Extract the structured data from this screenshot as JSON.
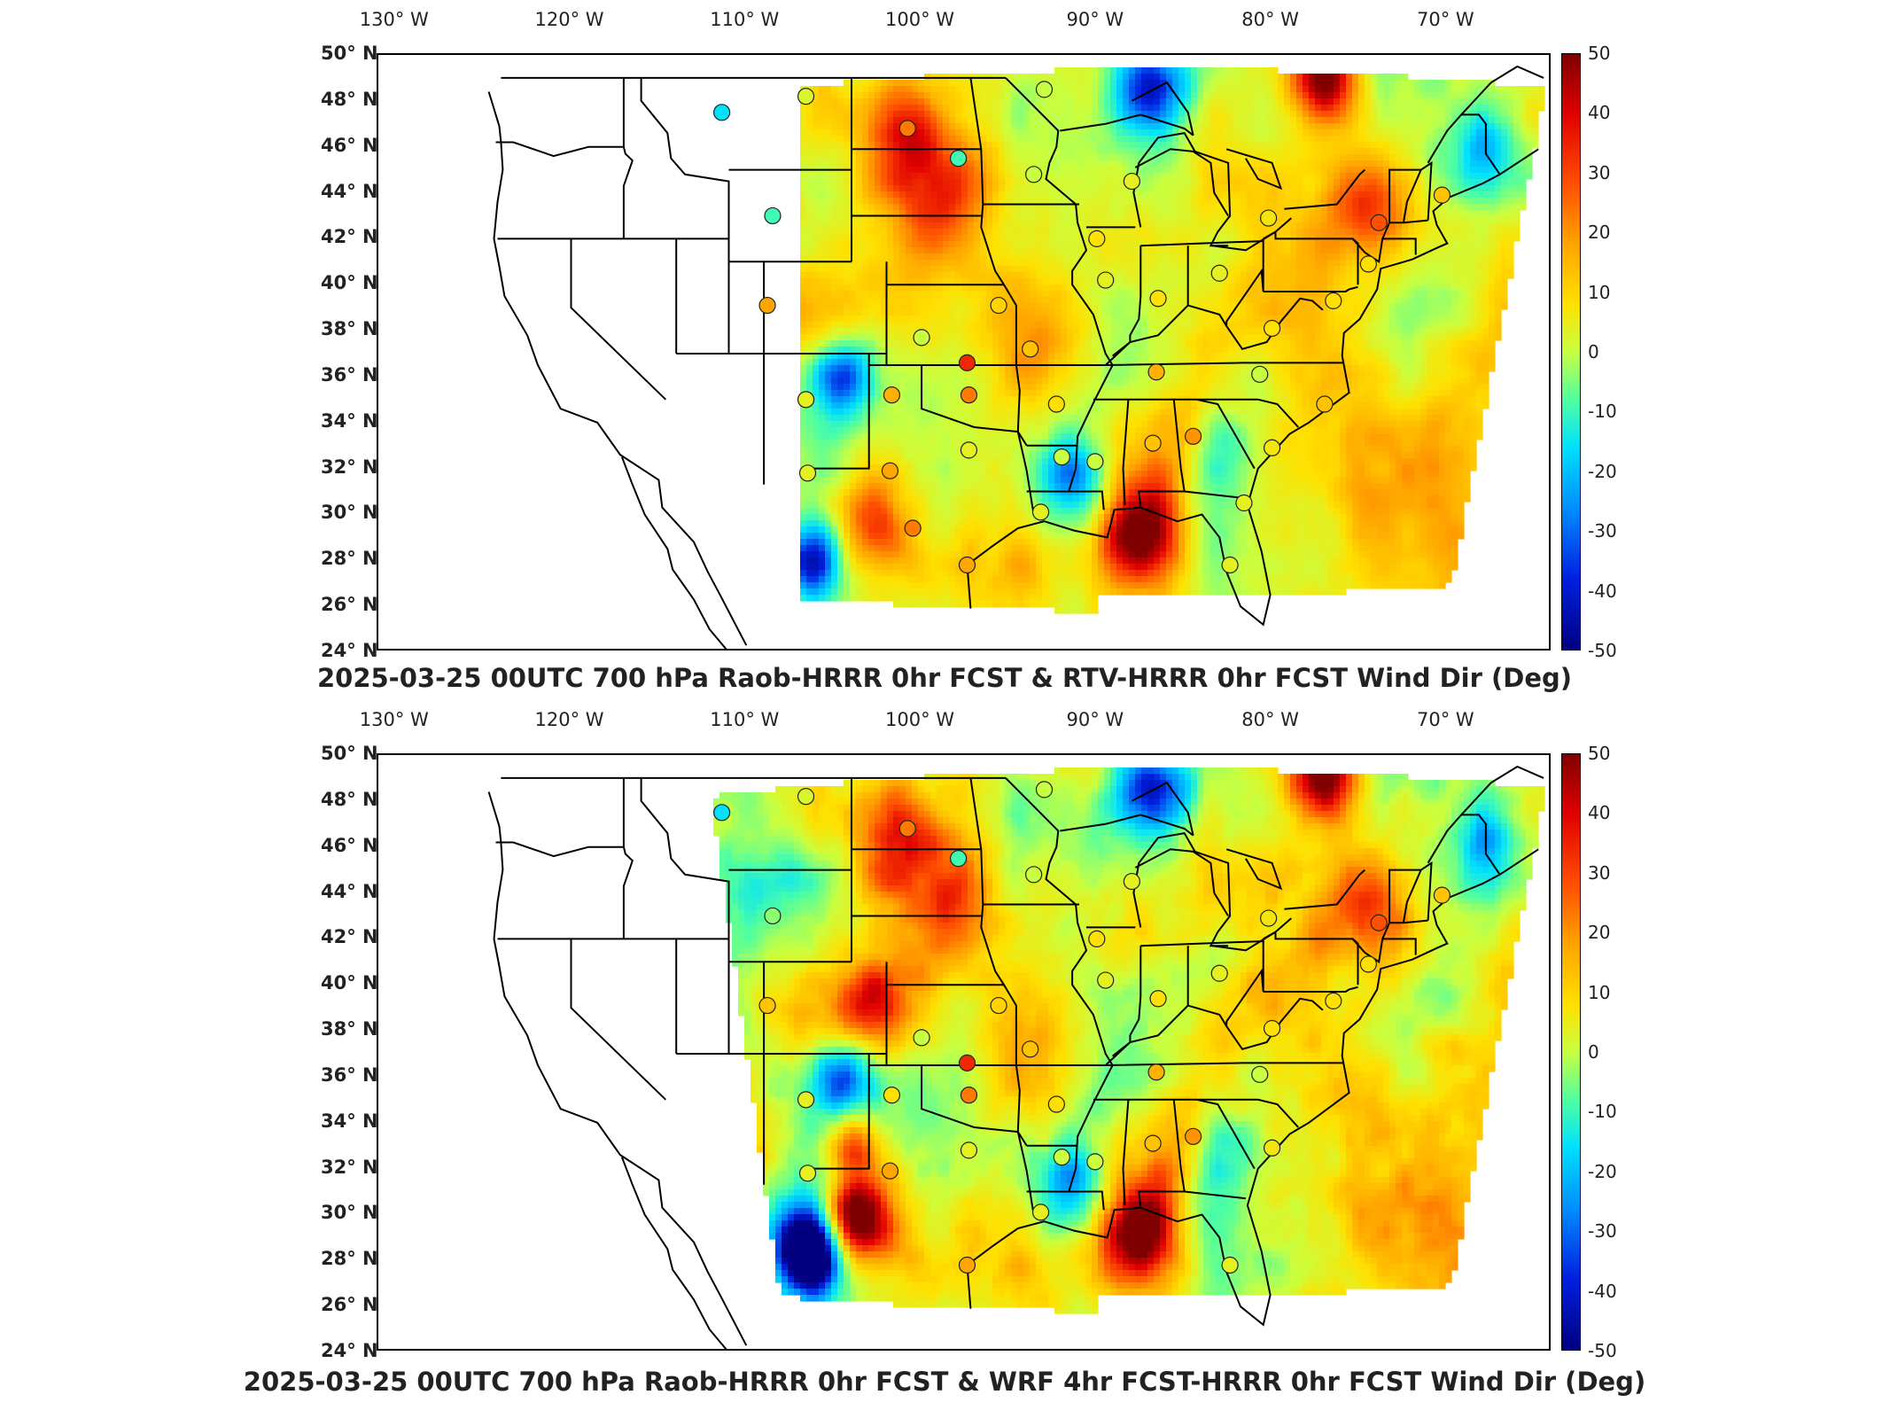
{
  "colormap_colors": [
    "#800000",
    "#e00000",
    "#ff5000",
    "#ffa500",
    "#ffe000",
    "#c8ff40",
    "#50ffa0",
    "#00e0ff",
    "#0090ff",
    "#0020e0",
    "#000080"
  ],
  "lon_labels": [
    "130° W",
    "120° W",
    "110° W",
    "100° W",
    "90° W",
    "80° W",
    "70° W"
  ],
  "lat_labels": [
    "50° N",
    "48° N",
    "46° N",
    "44° N",
    "42° N",
    "40° N",
    "38° N",
    "36° N",
    "34° N",
    "32° N",
    "30° N",
    "28° N",
    "26° N",
    "24° N"
  ],
  "colorbar_ticks": [
    "50",
    "40",
    "30",
    "20",
    "10",
    "0",
    "-10",
    "-20",
    "-30",
    "-40",
    "-50"
  ],
  "panels": [
    {
      "title": "2025-03-25 00UTC 700 hPa Raob-HRRR 0hr FCST & RTV-HRRR 0hr FCST Wind Dir (Deg)"
    },
    {
      "title": "2025-03-25 00UTC 700 hPa Raob-HRRR 0hr FCST & WRF 4hr FCST-HRRR 0hr FCST Wind Dir (Deg)"
    }
  ],
  "chart_data": [
    {
      "type": "heatmap",
      "title": "2025-03-25 00UTC 700 hPa Raob-HRRR 0hr FCST & RTV-HRRR 0hr FCST Wind Dir (Deg)",
      "x_ticks": [
        "130° W",
        "120° W",
        "110° W",
        "100° W",
        "90° W",
        "80° W",
        "70° W"
      ],
      "y_ticks": [
        "50° N",
        "48° N",
        "46° N",
        "44° N",
        "42° N",
        "40° N",
        "38° N",
        "36° N",
        "34° N",
        "32° N",
        "30° N",
        "28° N",
        "26° N",
        "24° N"
      ],
      "xlim": [
        -131,
        -64
      ],
      "ylim": [
        24,
        50
      ],
      "colorbar_range": [
        -50,
        50
      ],
      "colorbar_ticks": [
        50,
        40,
        30,
        20,
        10,
        0,
        -10,
        -20,
        -30,
        -40,
        -50
      ],
      "stations": [
        {
          "lon": -111.4,
          "lat": 47.5,
          "value": -20
        },
        {
          "lon": -106.6,
          "lat": 48.2,
          "value": 3
        },
        {
          "lon": -100.8,
          "lat": 46.8,
          "value": 25
        },
        {
          "lon": -97.9,
          "lat": 45.5,
          "value": -12
        },
        {
          "lon": -93.6,
          "lat": 44.8,
          "value": 0
        },
        {
          "lon": -93.0,
          "lat": 48.5,
          "value": 0
        },
        {
          "lon": -88.0,
          "lat": 44.5,
          "value": 5
        },
        {
          "lon": -108.5,
          "lat": 43.0,
          "value": -12
        },
        {
          "lon": -108.8,
          "lat": 39.1,
          "value": 20
        },
        {
          "lon": -100.0,
          "lat": 37.7,
          "value": 0
        },
        {
          "lon": -95.6,
          "lat": 39.1,
          "value": 12
        },
        {
          "lon": -90.0,
          "lat": 42.0,
          "value": 10
        },
        {
          "lon": -89.5,
          "lat": 40.2,
          "value": 5
        },
        {
          "lon": -86.5,
          "lat": 39.4,
          "value": 10
        },
        {
          "lon": -83.0,
          "lat": 40.5,
          "value": 5
        },
        {
          "lon": -80.2,
          "lat": 42.9,
          "value": 8
        },
        {
          "lon": -73.9,
          "lat": 42.7,
          "value": 30
        },
        {
          "lon": -70.3,
          "lat": 43.9,
          "value": 15
        },
        {
          "lon": -80.0,
          "lat": 38.1,
          "value": 10
        },
        {
          "lon": -97.4,
          "lat": 36.6,
          "value": 35
        },
        {
          "lon": -97.3,
          "lat": 35.2,
          "value": 25
        },
        {
          "lon": -101.7,
          "lat": 35.2,
          "value": 18
        },
        {
          "lon": -106.6,
          "lat": 35.0,
          "value": 5
        },
        {
          "lon": -93.8,
          "lat": 37.2,
          "value": 15
        },
        {
          "lon": -92.3,
          "lat": 34.8,
          "value": 10
        },
        {
          "lon": -86.6,
          "lat": 36.2,
          "value": 18
        },
        {
          "lon": -80.7,
          "lat": 36.1,
          "value": 0
        },
        {
          "lon": -77.0,
          "lat": 34.8,
          "value": 15
        },
        {
          "lon": -84.5,
          "lat": 33.4,
          "value": 22
        },
        {
          "lon": -86.8,
          "lat": 33.1,
          "value": 15
        },
        {
          "lon": -80.0,
          "lat": 32.9,
          "value": 8
        },
        {
          "lon": -90.1,
          "lat": 32.3,
          "value": 0
        },
        {
          "lon": -92.0,
          "lat": 32.5,
          "value": 0
        },
        {
          "lon": -97.3,
          "lat": 32.8,
          "value": 5
        },
        {
          "lon": -101.8,
          "lat": 31.9,
          "value": 20
        },
        {
          "lon": -106.5,
          "lat": 31.8,
          "value": 5
        },
        {
          "lon": -100.5,
          "lat": 29.4,
          "value": 25
        },
        {
          "lon": -97.4,
          "lat": 27.8,
          "value": 20
        },
        {
          "lon": -93.2,
          "lat": 30.1,
          "value": 5
        },
        {
          "lon": -81.6,
          "lat": 30.5,
          "value": 5
        },
        {
          "lon": -82.4,
          "lat": 27.8,
          "value": 5
        },
        {
          "lon": -76.5,
          "lat": 39.3,
          "value": 10
        },
        {
          "lon": -74.5,
          "lat": 40.9,
          "value": 10
        }
      ]
    },
    {
      "type": "heatmap",
      "title": "2025-03-25 00UTC 700 hPa Raob-HRRR 0hr FCST & WRF 4hr FCST-HRRR 0hr FCST Wind Dir (Deg)",
      "x_ticks": [
        "130° W",
        "120° W",
        "110° W",
        "100° W",
        "90° W",
        "80° W",
        "70° W"
      ],
      "y_ticks": [
        "50° N",
        "48° N",
        "46° N",
        "44° N",
        "42° N",
        "40° N",
        "38° N",
        "36° N",
        "34° N",
        "32° N",
        "30° N",
        "28° N",
        "26° N",
        "24° N"
      ],
      "xlim": [
        -131,
        -64
      ],
      "ylim": [
        24,
        50
      ],
      "colorbar_range": [
        -50,
        50
      ],
      "colorbar_ticks": [
        50,
        40,
        30,
        20,
        10,
        0,
        -10,
        -20,
        -30,
        -40,
        -50
      ],
      "stations": [
        {
          "lon": -111.4,
          "lat": 47.5,
          "value": -20
        },
        {
          "lon": -106.6,
          "lat": 48.2,
          "value": 3
        },
        {
          "lon": -100.8,
          "lat": 46.8,
          "value": 25
        },
        {
          "lon": -97.9,
          "lat": 45.5,
          "value": -12
        },
        {
          "lon": -93.6,
          "lat": 44.8,
          "value": 0
        },
        {
          "lon": -93.0,
          "lat": 48.5,
          "value": 0
        },
        {
          "lon": -88.0,
          "lat": 44.5,
          "value": 5
        },
        {
          "lon": -108.5,
          "lat": 43.0,
          "value": -5
        },
        {
          "lon": -108.8,
          "lat": 39.1,
          "value": 15
        },
        {
          "lon": -100.0,
          "lat": 37.7,
          "value": 0
        },
        {
          "lon": -95.6,
          "lat": 39.1,
          "value": 12
        },
        {
          "lon": -90.0,
          "lat": 42.0,
          "value": 10
        },
        {
          "lon": -89.5,
          "lat": 40.2,
          "value": 5
        },
        {
          "lon": -86.5,
          "lat": 39.4,
          "value": 10
        },
        {
          "lon": -83.0,
          "lat": 40.5,
          "value": 5
        },
        {
          "lon": -80.2,
          "lat": 42.9,
          "value": 8
        },
        {
          "lon": -73.9,
          "lat": 42.7,
          "value": 30
        },
        {
          "lon": -70.3,
          "lat": 43.9,
          "value": 15
        },
        {
          "lon": -80.0,
          "lat": 38.1,
          "value": 10
        },
        {
          "lon": -97.4,
          "lat": 36.6,
          "value": 35
        },
        {
          "lon": -97.3,
          "lat": 35.2,
          "value": 25
        },
        {
          "lon": -101.7,
          "lat": 35.2,
          "value": 10
        },
        {
          "lon": -106.6,
          "lat": 35.0,
          "value": 5
        },
        {
          "lon": -93.8,
          "lat": 37.2,
          "value": 15
        },
        {
          "lon": -92.3,
          "lat": 34.8,
          "value": 10
        },
        {
          "lon": -86.6,
          "lat": 36.2,
          "value": 18
        },
        {
          "lon": -80.7,
          "lat": 36.1,
          "value": 0
        },
        {
          "lon": -84.5,
          "lat": 33.4,
          "value": 22
        },
        {
          "lon": -86.8,
          "lat": 33.1,
          "value": 15
        },
        {
          "lon": -80.0,
          "lat": 32.9,
          "value": 8
        },
        {
          "lon": -90.1,
          "lat": 32.3,
          "value": 0
        },
        {
          "lon": -92.0,
          "lat": 32.5,
          "value": 0
        },
        {
          "lon": -97.3,
          "lat": 32.8,
          "value": 5
        },
        {
          "lon": -101.8,
          "lat": 31.9,
          "value": 20
        },
        {
          "lon": -106.5,
          "lat": 31.8,
          "value": 5
        },
        {
          "lon": -97.4,
          "lat": 27.8,
          "value": 20
        },
        {
          "lon": -93.2,
          "lat": 30.1,
          "value": 5
        },
        {
          "lon": -82.4,
          "lat": 27.8,
          "value": 5
        },
        {
          "lon": -76.5,
          "lat": 39.3,
          "value": 10
        },
        {
          "lon": -74.5,
          "lat": 40.9,
          "value": 10
        }
      ]
    }
  ]
}
